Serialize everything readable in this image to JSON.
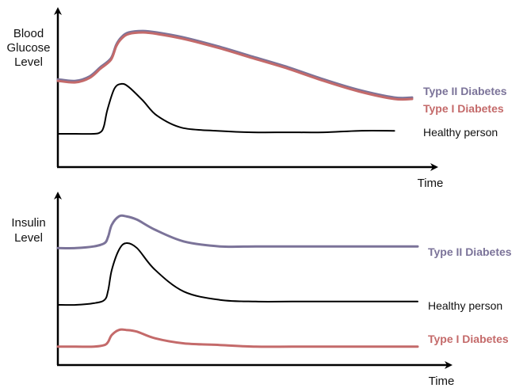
{
  "chart_data": [
    {
      "type": "line",
      "ylabel": [
        "Blood",
        "Glucose",
        "Level"
      ],
      "xlabel": "Time",
      "ylim": [
        0,
        100
      ],
      "xlim": [
        0,
        100
      ],
      "axis_ticks": false,
      "grid": false,
      "series": [
        {
          "name": "Type II Diabetes",
          "color": "#7b7399",
          "x": [
            0,
            5,
            9,
            12,
            15,
            16.5,
            18,
            20,
            24,
            28,
            35,
            45,
            55,
            65,
            75,
            85,
            95,
            100
          ],
          "y": [
            58,
            57,
            60,
            66,
            72,
            81,
            86,
            89,
            90,
            89,
            86,
            80,
            73,
            66,
            58,
            51,
            46,
            46
          ]
        },
        {
          "name": "Type I Diabetes",
          "color": "#c46a6a",
          "x": [
            0,
            5,
            9,
            12,
            15,
            16.5,
            18,
            20,
            24,
            28,
            35,
            45,
            55,
            65,
            75,
            85,
            95,
            100
          ],
          "y": [
            57,
            56,
            59,
            65,
            71,
            80,
            85,
            88,
            89,
            88,
            85,
            79,
            72,
            65,
            57,
            50,
            45,
            45
          ]
        },
        {
          "name": "Healthy person",
          "color": "#000000",
          "x": [
            0,
            5,
            10,
            12,
            13,
            14,
            16,
            18,
            20,
            24,
            28,
            35,
            45,
            55,
            65,
            75,
            85,
            95
          ],
          "y": [
            22,
            22,
            22,
            23,
            27,
            38,
            52,
            55,
            53,
            44,
            34,
            26,
            24,
            23,
            23,
            23,
            24,
            24
          ]
        }
      ]
    },
    {
      "type": "line",
      "ylabel": [
        "Insulin",
        "Level"
      ],
      "xlabel": "Time",
      "ylim": [
        0,
        100
      ],
      "xlim": [
        0,
        100
      ],
      "axis_ticks": false,
      "grid": false,
      "series": [
        {
          "name": "Type II Diabetes",
          "color": "#7b7399",
          "x": [
            0,
            5,
            10,
            13,
            14,
            15,
            17,
            19,
            22,
            27,
            35,
            45,
            55,
            65,
            75,
            85,
            95,
            100
          ],
          "y": [
            70,
            70,
            71,
            73,
            77,
            84,
            89,
            89,
            87,
            81,
            74,
            71,
            71,
            71,
            71,
            71,
            71,
            71
          ]
        },
        {
          "name": "Healthy person",
          "color": "#000000",
          "x": [
            0,
            5,
            10,
            13,
            14,
            15,
            17,
            19,
            22,
            27,
            35,
            45,
            55,
            65,
            75,
            85,
            95,
            100
          ],
          "y": [
            36,
            36,
            37,
            39,
            45,
            57,
            69,
            73,
            70,
            57,
            44,
            39,
            38,
            38,
            38,
            38,
            38,
            38
          ]
        },
        {
          "name": "Type I Diabetes",
          "color": "#c46a6a",
          "x": [
            0,
            5,
            10,
            13,
            14,
            15,
            17,
            19,
            22,
            27,
            35,
            45,
            55,
            65,
            75,
            85,
            95,
            100
          ],
          "y": [
            11,
            11,
            11,
            12,
            14,
            18,
            21,
            21,
            20,
            16,
            13,
            12,
            11,
            11,
            11,
            11,
            11,
            11
          ]
        }
      ]
    }
  ]
}
